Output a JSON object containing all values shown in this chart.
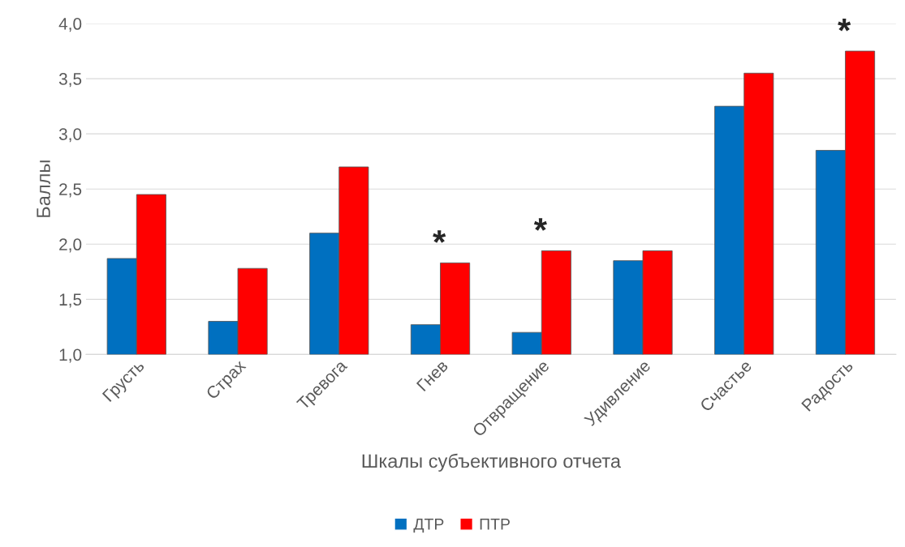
{
  "chart_data": {
    "type": "bar",
    "xlabel": "Шкалы субъективного отчета",
    "ylabel": "Баллы",
    "categories": [
      "Грусть",
      "Страх",
      "Тревога",
      "Гнев",
      "Отвращение",
      "Удивление",
      "Счастье",
      "Радость"
    ],
    "series": [
      {
        "name": "ДТР",
        "color": "#0070c0",
        "values": [
          1.87,
          1.3,
          2.1,
          1.27,
          1.2,
          1.85,
          3.25,
          2.85
        ]
      },
      {
        "name": "ПТР",
        "color": "#ff0000",
        "values": [
          2.45,
          1.78,
          2.7,
          1.83,
          1.94,
          1.94,
          3.55,
          3.75
        ]
      }
    ],
    "ylim": [
      1.0,
      4.0
    ],
    "yticks": [
      {
        "value": 1.0,
        "label": "1,0"
      },
      {
        "value": 1.5,
        "label": "1,5"
      },
      {
        "value": 2.0,
        "label": "2,0"
      },
      {
        "value": 2.5,
        "label": "2,5"
      },
      {
        "value": 3.0,
        "label": "3,0"
      },
      {
        "value": 3.5,
        "label": "3,5"
      },
      {
        "value": 4.0,
        "label": "4,0"
      }
    ],
    "grid": "y",
    "legend": "bottom",
    "annotations": [
      {
        "text": "*",
        "x": "Гнев",
        "y": 1.83
      },
      {
        "text": "*",
        "x": "Отвращение",
        "y": 1.94
      },
      {
        "text": "*",
        "x": "Радость",
        "y": 3.75
      }
    ]
  }
}
